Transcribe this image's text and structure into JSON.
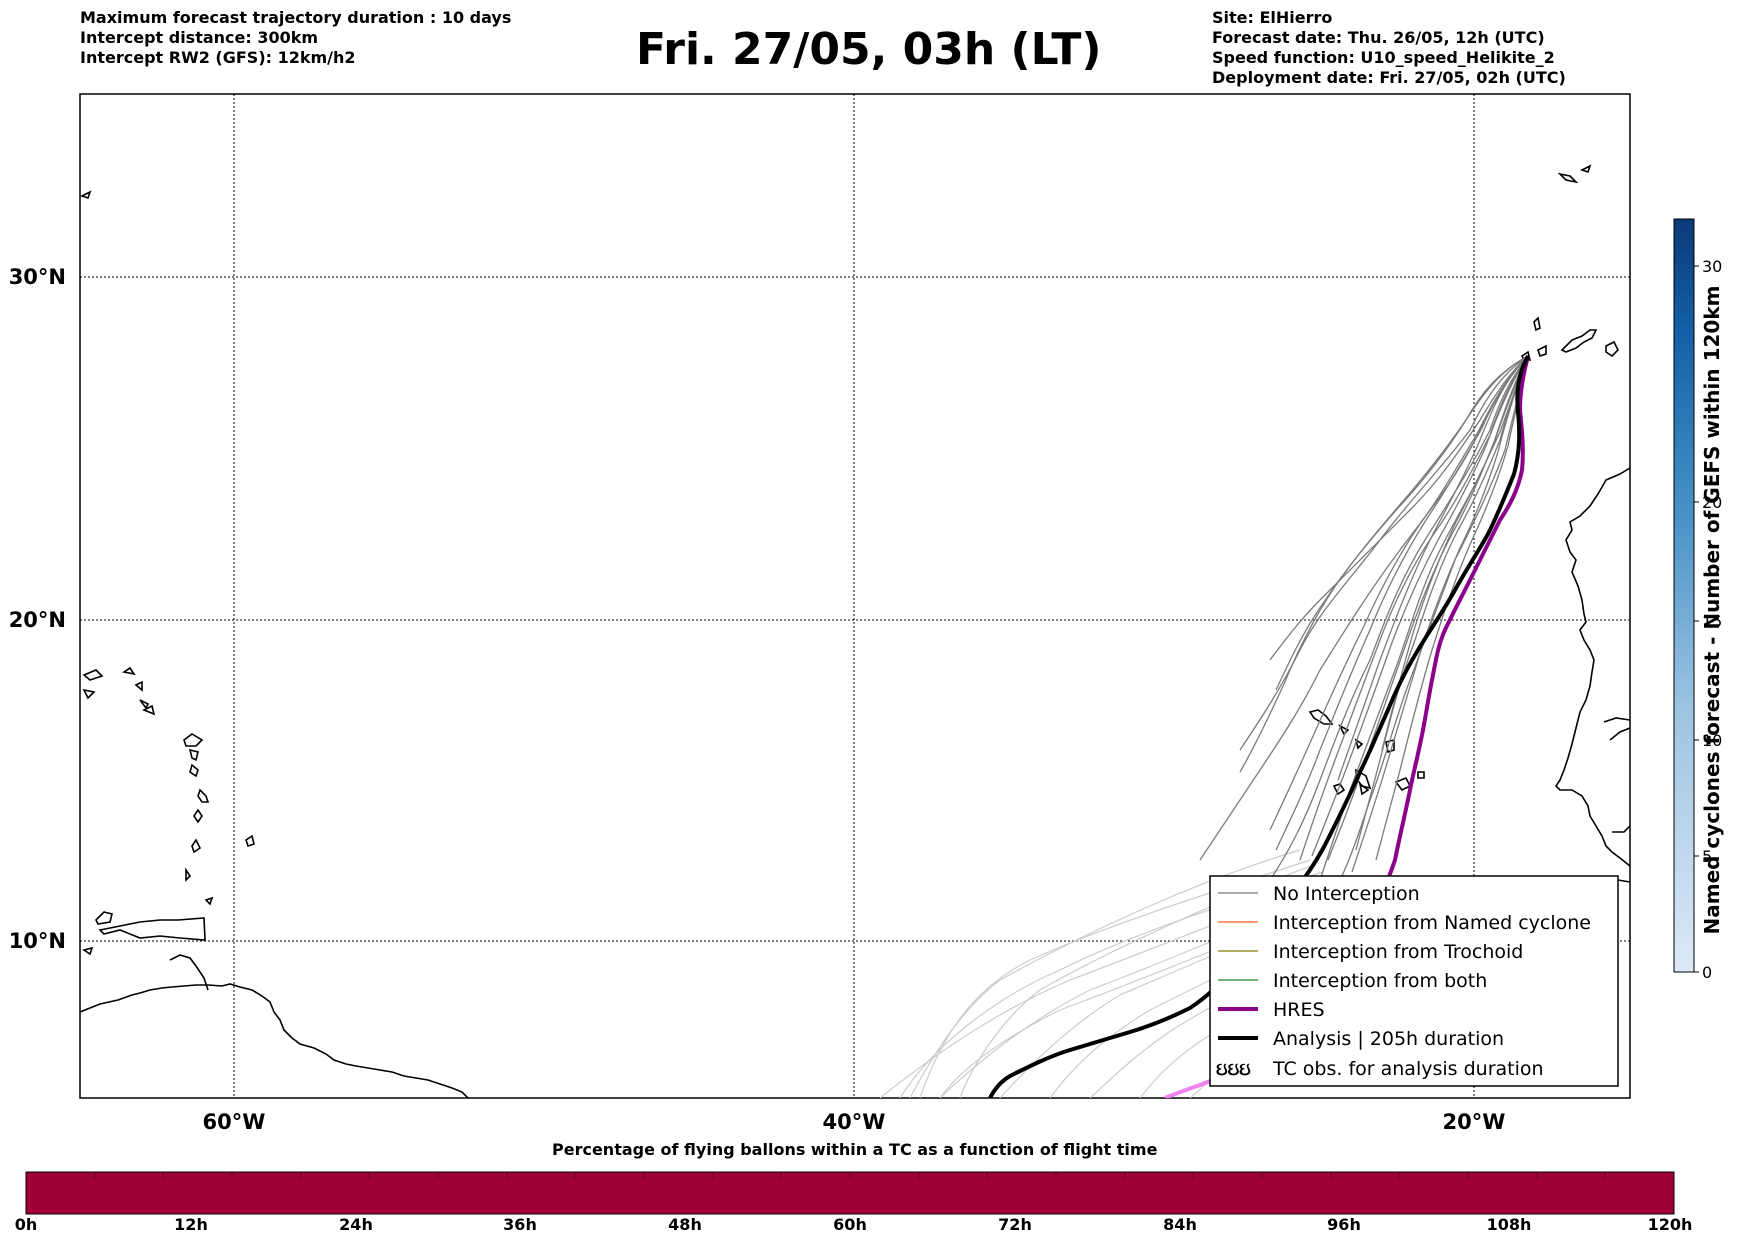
{
  "header": {
    "left": [
      "Maximum forecast trajectory duration : 10 days",
      "Intercept distance: 300km",
      "Intercept RW2 (GFS):  12km/h2"
    ],
    "title": "Fri. 27/05, 03h (LT)",
    "right": [
      "Site: ElHierro",
      "Forecast date: Thu. 26/05, 12h (UTC)",
      "Speed function: U10_speed_Helikite_2",
      "Deployment date: Fri. 27/05, 02h (UTC)"
    ]
  },
  "map": {
    "lat_labels": [
      "30°N",
      "20°N",
      "10°N"
    ],
    "lon_labels": [
      "60°W",
      "40°W",
      "20°W"
    ],
    "grid": true,
    "colors": {
      "no_interception": "#7a7a7a",
      "no_interception_faded": "#cccccc",
      "named_cyclone": "#ff5a1e",
      "trochoid": "#808000",
      "both": "#228b22",
      "hres": "#8b008b",
      "hres_faded": "#ee82ee",
      "analysis": "#000000"
    }
  },
  "legend": {
    "items": [
      {
        "label": "No Interception",
        "style": "thin-gray"
      },
      {
        "label": "Interception from Named cyclone",
        "style": "thin-orange"
      },
      {
        "label": "Interception from Trochoid",
        "style": "thin-olive"
      },
      {
        "label": "Interception from both",
        "style": "thin-green"
      },
      {
        "label": "HRES",
        "style": "thick-purple"
      },
      {
        "label": "Analysis | 205h duration",
        "style": "thick-black"
      },
      {
        "label": "TC obs. for analysis duration",
        "style": "tc-symbols",
        "symbol": "ઇઇઇ"
      }
    ]
  },
  "colorbar_right": {
    "title": "Named cyclones forecast - Number of GEFS within 120km",
    "ticks": [
      "0",
      "5",
      "10",
      "15",
      "20",
      "30"
    ]
  },
  "colorbar_bottom": {
    "title": "Percentage of flying ballons within a TC as a function of flight time",
    "ticks": [
      "0h",
      "12h",
      "24h",
      "36h",
      "48h",
      "60h",
      "72h",
      "84h",
      "96h",
      "108h",
      "120h"
    ],
    "fill_color": "#9e0038"
  }
}
